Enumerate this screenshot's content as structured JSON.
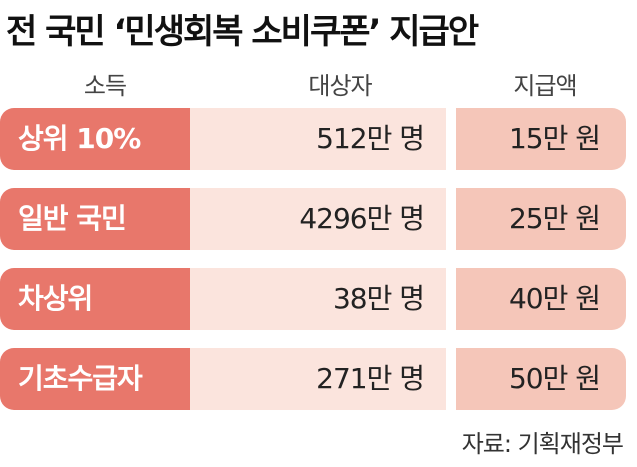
{
  "title": "전 국민 ‘민생회복 소비쿠폰’ 지급안",
  "header": {
    "columns": [
      "소득",
      "대상자",
      "지급액"
    ]
  },
  "table": {
    "rows": [
      [
        "상위 10%",
        "512만 명",
        "15만 원"
      ],
      [
        "일반 국민",
        "4296만 명",
        "25만 원"
      ],
      [
        "차상위",
        "38만 명",
        "40만 원"
      ],
      [
        "기초수급자",
        "271만 명",
        "50만 원"
      ]
    ]
  },
  "source": "자료: 기획재정부"
}
